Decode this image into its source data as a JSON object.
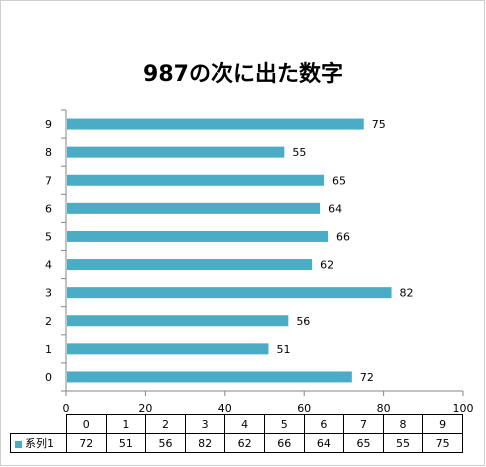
{
  "chart_data": {
    "type": "bar",
    "orientation": "horizontal",
    "title": "987の次に出た数字",
    "categories": [
      "0",
      "1",
      "2",
      "3",
      "4",
      "5",
      "6",
      "7",
      "8",
      "9"
    ],
    "series": [
      {
        "name": "系列1",
        "values": [
          72,
          51,
          56,
          82,
          62,
          66,
          64,
          65,
          55,
          75
        ],
        "color": "#4bacc6"
      }
    ],
    "xlim": [
      0,
      100
    ],
    "xticks": [
      "0",
      "20",
      "40",
      "60",
      "80",
      "100"
    ],
    "data_labels": true,
    "grid": false,
    "data_table": true
  }
}
